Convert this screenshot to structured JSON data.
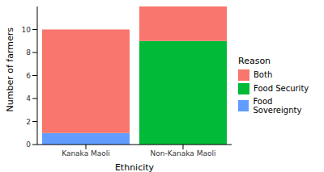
{
  "chart_data": {
    "type": "bar",
    "stacked": true,
    "categories": [
      "Kanaka Maoli",
      "Non-Kanaka Maoli"
    ],
    "xlabel": "Ethnicity",
    "ylabel": "Number of farmers",
    "legend_title": "Reason",
    "legend": "right",
    "grid": false,
    "ylim": [
      0,
      12
    ],
    "yticks": [
      0,
      2,
      4,
      6,
      8,
      10
    ],
    "series": [
      {
        "name": "Both",
        "color": "#F8766D",
        "values": [
          9,
          3
        ]
      },
      {
        "name": "Food Security",
        "color": "#00BA38",
        "values": [
          0,
          9
        ]
      },
      {
        "name": "Food Sovereignty",
        "color": "#619CFF",
        "values": [
          1,
          0
        ]
      }
    ]
  }
}
